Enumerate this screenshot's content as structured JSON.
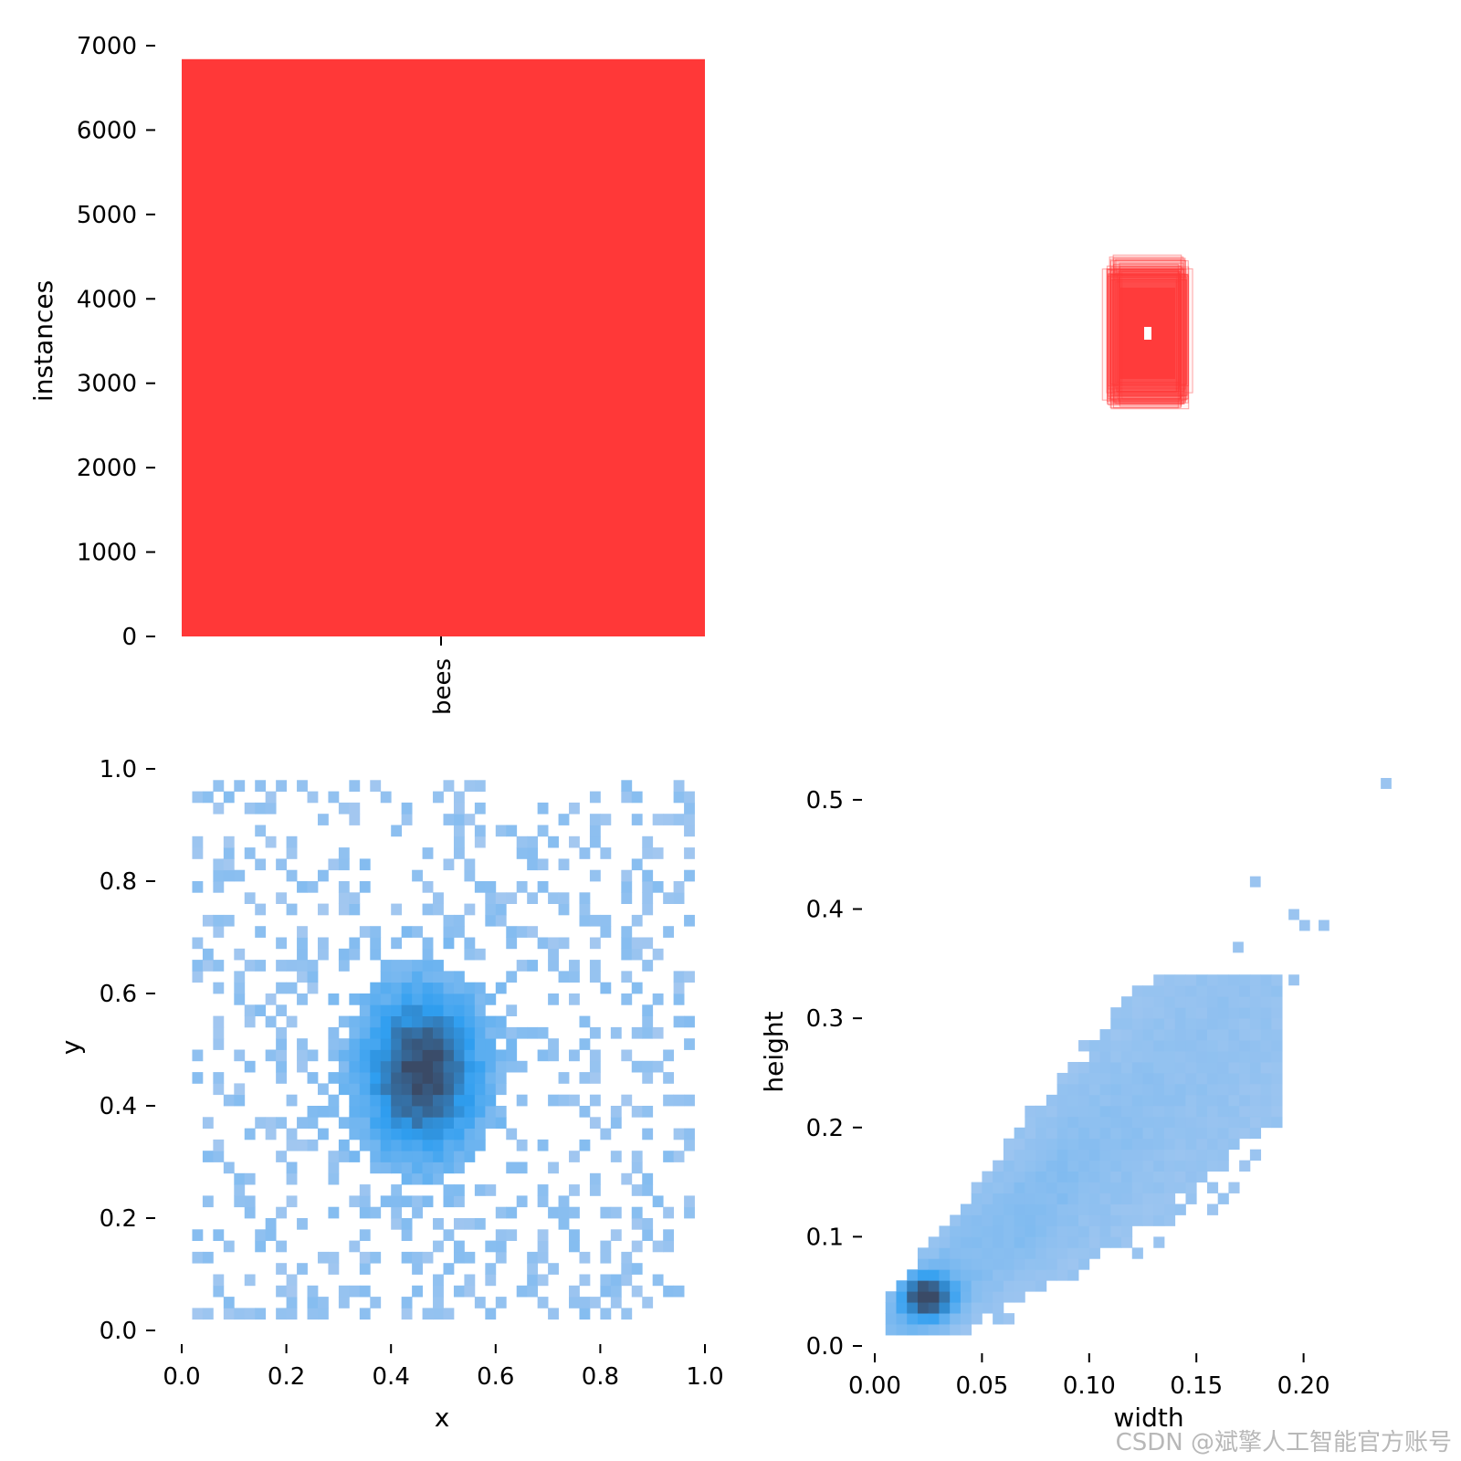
{
  "colors": {
    "bar": "#ff3838",
    "hist_light": "#a5c8f0",
    "hist_mid": "#2f9ef0",
    "hist_dark": "#3a4a66",
    "text": "#000000",
    "watermark": "#b8b8b8"
  },
  "watermark": "CSDN @斌擎人工智能官方账号",
  "chart_data": [
    {
      "type": "bar",
      "categories": [
        "bees"
      ],
      "values": [
        6840
      ],
      "title": "",
      "xlabel": "",
      "ylabel": "instances",
      "ylim": [
        0,
        7000
      ],
      "yticks": [
        0,
        1000,
        2000,
        3000,
        4000,
        5000,
        6000,
        7000
      ],
      "ytick_labels": [
        "0",
        "1000",
        "2000",
        "3000",
        "4000",
        "5000",
        "6000",
        "7000"
      ],
      "grid": false,
      "color": "#ff3838"
    },
    {
      "type": "other",
      "description_key": "bounding-box overlay",
      "color": "#ff3838"
    },
    {
      "type": "heatmap",
      "xlabel": "x",
      "ylabel": "y",
      "xlim": [
        0,
        1
      ],
      "ylim": [
        0,
        1
      ],
      "xticks": [
        0.0,
        0.2,
        0.4,
        0.6,
        0.8,
        1.0
      ],
      "xtick_labels": [
        "0.0",
        "0.2",
        "0.4",
        "0.6",
        "0.8",
        "1.0"
      ],
      "yticks": [
        0.0,
        0.2,
        0.4,
        0.6,
        0.8,
        1.0
      ],
      "ytick_labels": [
        "0.0",
        "0.2",
        "0.4",
        "0.6",
        "0.8",
        "1.0"
      ],
      "bins": 50,
      "center": [
        0.46,
        0.46
      ],
      "grid": false
    },
    {
      "type": "heatmap",
      "xlabel": "width",
      "ylabel": "height",
      "xlim": [
        0,
        0.25
      ],
      "ylim": [
        0,
        0.52
      ],
      "xticks": [
        0.0,
        0.05,
        0.1,
        0.15,
        0.2
      ],
      "xtick_labels": [
        "0.00",
        "0.05",
        "0.10",
        "0.15",
        "0.20"
      ],
      "yticks": [
        0.0,
        0.1,
        0.2,
        0.3,
        0.4,
        0.5
      ],
      "ytick_labels": [
        "0.0",
        "0.1",
        "0.2",
        "0.3",
        "0.4",
        "0.5"
      ],
      "peak": [
        0.022,
        0.04
      ],
      "outliers": [
        [
          0.236,
          0.51
        ],
        [
          0.175,
          0.42
        ],
        [
          0.193,
          0.39
        ],
        [
          0.198,
          0.38
        ],
        [
          0.207,
          0.38
        ],
        [
          0.193,
          0.33
        ],
        [
          0.167,
          0.36
        ],
        [
          0.185,
          0.23
        ],
        [
          0.175,
          0.21
        ]
      ],
      "grid": false
    }
  ]
}
